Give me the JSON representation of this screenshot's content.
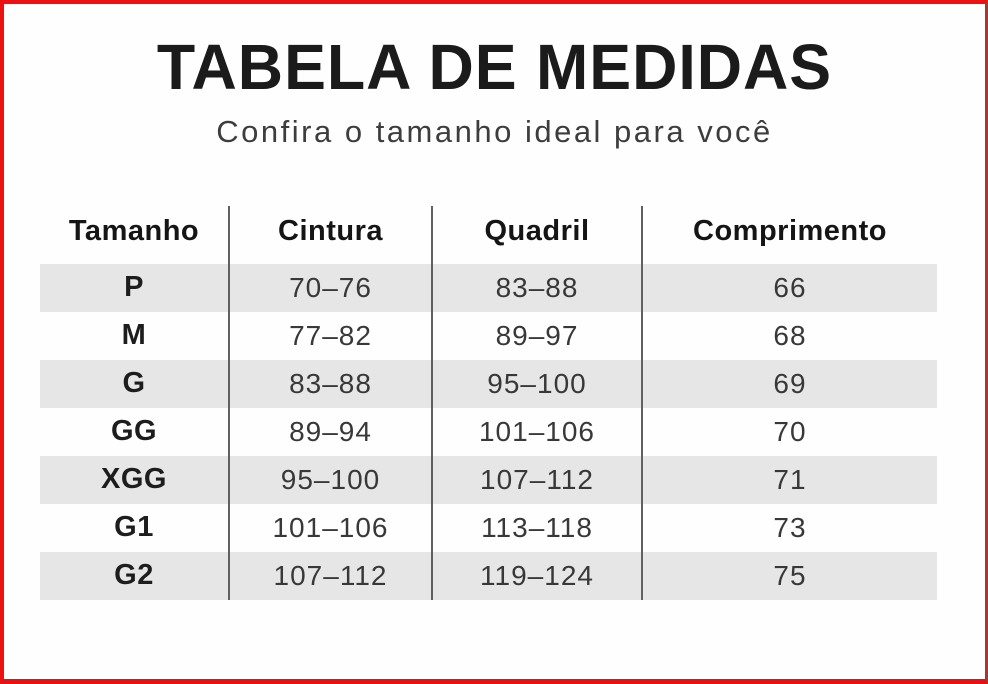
{
  "page": {
    "frame_border_color": "#ee1111",
    "stripe_color": "#e6e6e6",
    "separator_color": "#606060"
  },
  "header": {
    "title": "TABELA DE MEDIDAS",
    "subtitle": "Confira o tamanho ideal para você"
  },
  "table": {
    "columns": [
      "Tamanho",
      "Cintura",
      "Quadril",
      "Comprimento"
    ],
    "rows": [
      [
        "P",
        "70–76",
        "83–88",
        "66"
      ],
      [
        "M",
        "77–82",
        "89–97",
        "68"
      ],
      [
        "G",
        "83–88",
        "95–100",
        "69"
      ],
      [
        "GG",
        "89–94",
        "101–106",
        "70"
      ],
      [
        "XGG",
        "95–100",
        "107–112",
        "71"
      ],
      [
        "G1",
        "101–106",
        "113–118",
        "73"
      ],
      [
        "G2",
        "107–112",
        "119–124",
        "75"
      ]
    ]
  }
}
